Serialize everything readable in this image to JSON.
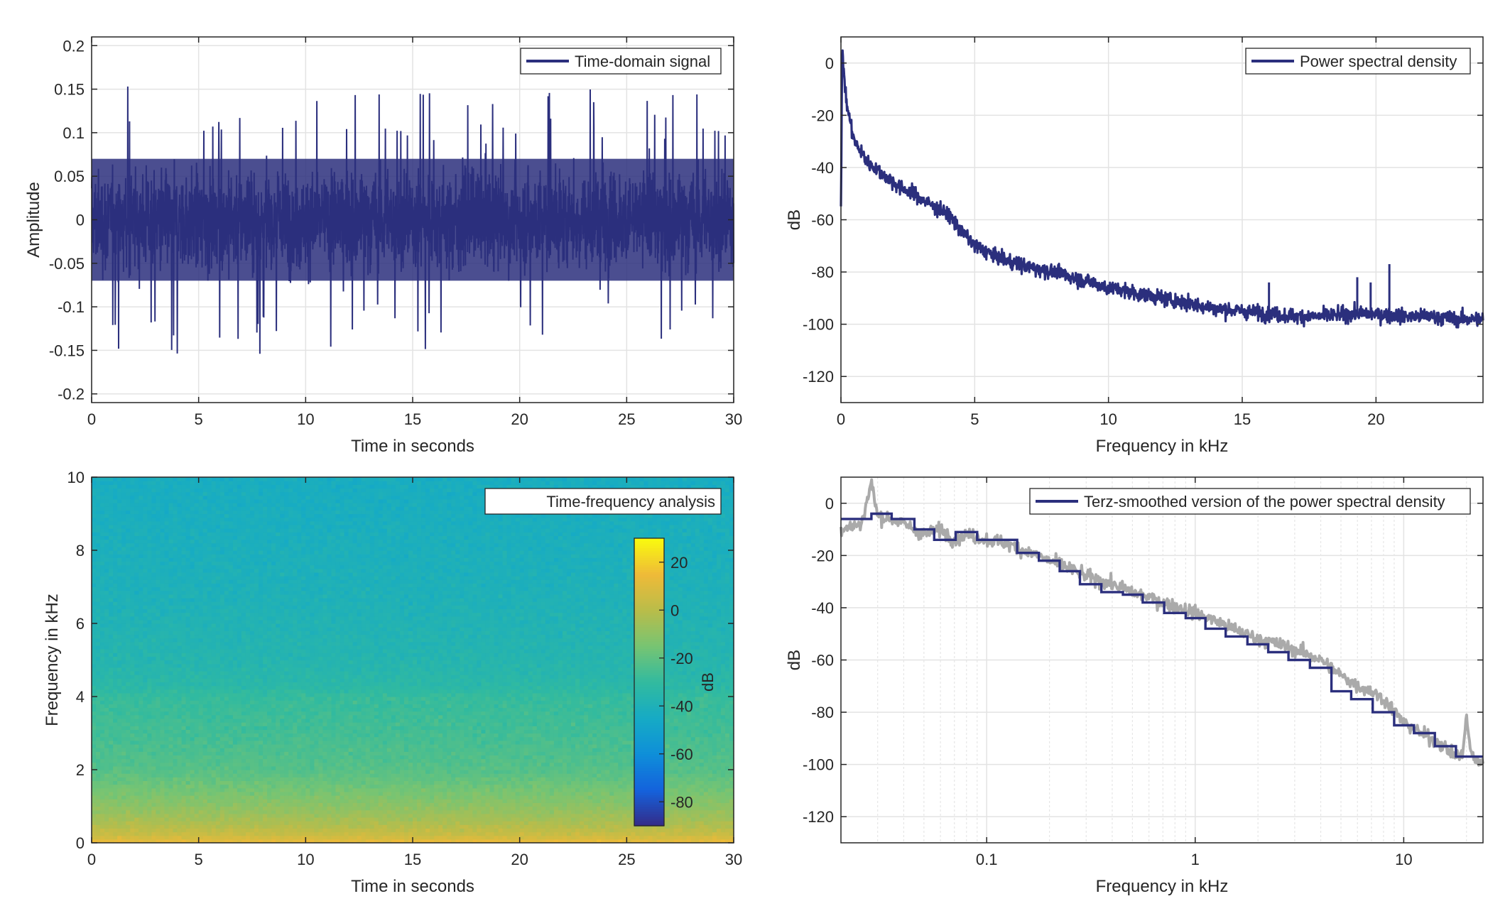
{
  "chart_data": [
    {
      "type": "line",
      "title": "",
      "xlabel": "Time in seconds",
      "ylabel": "Amplitude",
      "xlim": [
        0,
        30
      ],
      "ylim": [
        -0.21,
        0.21
      ],
      "xticks": [
        0,
        5,
        10,
        15,
        20,
        25,
        30
      ],
      "yticks": [
        -0.2,
        -0.15,
        -0.1,
        -0.05,
        0,
        0.05,
        0.1,
        0.15,
        0.2
      ],
      "ytick_labels": [
        "-0.2",
        "-0.15",
        "-0.1",
        "-0.05",
        "0",
        "0.05",
        "0.1",
        "0.15",
        "0.2"
      ],
      "grid": true,
      "legend_position": "top-right",
      "series": [
        {
          "name": "Time-domain signal",
          "color": "#2b2f7d",
          "envelope_description": "dense noise, bulk within about ±0.07, peaks up to about ±0.17",
          "bulk_amplitude": 0.07,
          "peak_max": 0.155,
          "peak_min": -0.175,
          "x_range": [
            0,
            30
          ]
        }
      ]
    },
    {
      "type": "line",
      "title": "",
      "xlabel": "Frequency in kHz",
      "ylabel": "dB",
      "xlim": [
        0,
        24
      ],
      "ylim": [
        -130,
        10
      ],
      "xticks": [
        0,
        5,
        10,
        15,
        20
      ],
      "yticks": [
        -120,
        -100,
        -80,
        -60,
        -40,
        -20,
        0
      ],
      "grid": true,
      "legend_position": "top-right",
      "series": [
        {
          "name": "Power spectral density",
          "color": "#2b2f7d",
          "x": [
            0,
            0.05,
            0.2,
            0.5,
            1,
            2,
            3,
            4,
            4.5,
            5,
            6,
            7,
            8,
            9,
            10,
            11,
            12,
            13,
            14,
            15,
            16,
            17,
            18,
            19,
            20,
            21,
            22,
            23,
            24
          ],
          "y": [
            -55,
            5,
            -15,
            -30,
            -38,
            -46,
            -52,
            -58,
            -64,
            -70,
            -75,
            -78,
            -80,
            -83,
            -86,
            -88,
            -90,
            -92,
            -94,
            -95,
            -96,
            -97,
            -97,
            -96,
            -96,
            -97,
            -97,
            -98,
            -98
          ],
          "spikes": [
            {
              "x": 16,
              "y": -84
            },
            {
              "x": 19.3,
              "y": -82
            },
            {
              "x": 19.8,
              "y": -84
            },
            {
              "x": 20.5,
              "y": -77
            }
          ]
        }
      ]
    },
    {
      "type": "heatmap",
      "title": "",
      "xlabel": "Time in seconds",
      "ylabel": "Frequency in kHz",
      "xlim": [
        0,
        30
      ],
      "ylim": [
        0,
        10
      ],
      "xticks": [
        0,
        5,
        10,
        15,
        20,
        25,
        30
      ],
      "yticks": [
        0,
        2,
        4,
        6,
        8,
        10
      ],
      "colormap": "parula",
      "colorbar": {
        "label": "dB",
        "range": [
          -90,
          30
        ],
        "ticks": [
          -80,
          -60,
          -40,
          -20,
          0,
          20
        ],
        "position": "inside-right"
      },
      "legend_position": "top-right",
      "legend_label": "Time-frequency analysis",
      "level_profile_khz": [
        0,
        0.2,
        0.5,
        1,
        1.5,
        2,
        3,
        4,
        4.3,
        5,
        6,
        7,
        8,
        9,
        10
      ],
      "level_profile_db": [
        15,
        5,
        -2,
        -10,
        -16,
        -22,
        -26,
        -29,
        -33,
        -36,
        -38,
        -40,
        -41,
        -42,
        -43
      ]
    },
    {
      "type": "line",
      "title": "",
      "xlabel": "Frequency in kHz",
      "ylabel": "dB",
      "xscale": "log",
      "xlim": [
        0.02,
        24
      ],
      "ylim": [
        -130,
        10
      ],
      "xticks": [
        0.1,
        1,
        10
      ],
      "yticks": [
        -120,
        -100,
        -80,
        -60,
        -40,
        -20,
        0
      ],
      "grid": true,
      "legend_position": "top-right",
      "series": [
        {
          "name": "Terz-smoothed version of the power spectral density",
          "color": "#2b2f7d",
          "step_edges": [
            0.02,
            0.028,
            0.035,
            0.045,
            0.056,
            0.071,
            0.09,
            0.112,
            0.14,
            0.178,
            0.224,
            0.28,
            0.355,
            0.45,
            0.56,
            0.71,
            0.9,
            1.12,
            1.4,
            1.78,
            2.24,
            2.8,
            3.55,
            4.5,
            5.6,
            7.1,
            9,
            11.2,
            14.1,
            17.8,
            24
          ],
          "step_values": [
            -6,
            -4,
            -6,
            -10,
            -14,
            -11,
            -14,
            -14,
            -19,
            -22,
            -26,
            -31,
            -34,
            -35,
            -38,
            -42,
            -44,
            -48,
            -51,
            -54,
            -57,
            -60,
            -63,
            -72,
            -75,
            -80,
            -85,
            -88,
            -93,
            -97
          ]
        },
        {
          "name": "",
          "color": "#aaaaaa",
          "x": [
            0.02,
            0.025,
            0.028,
            0.03,
            0.035,
            0.04,
            0.05,
            0.06,
            0.07,
            0.08,
            0.1,
            0.12,
            0.15,
            0.2,
            0.3,
            0.5,
            0.7,
            1,
            1.5,
            2,
            3,
            4,
            5,
            6,
            7,
            8,
            10,
            12,
            15,
            17,
            19,
            20,
            21,
            22,
            24
          ],
          "y": [
            -10,
            -8,
            8,
            -5,
            -6,
            -8,
            -12,
            -10,
            -14,
            -12,
            -14,
            -15,
            -18,
            -22,
            -28,
            -34,
            -38,
            -42,
            -48,
            -52,
            -56,
            -60,
            -66,
            -70,
            -72,
            -75,
            -84,
            -88,
            -92,
            -96,
            -97,
            -82,
            -96,
            -98,
            -100
          ]
        }
      ]
    }
  ],
  "colors": {
    "signal": "#2b2f7d",
    "smoothed_raw": "#aaaaaa",
    "grid": "#e3e3e3",
    "axes": "#262626",
    "text": "#262626"
  }
}
